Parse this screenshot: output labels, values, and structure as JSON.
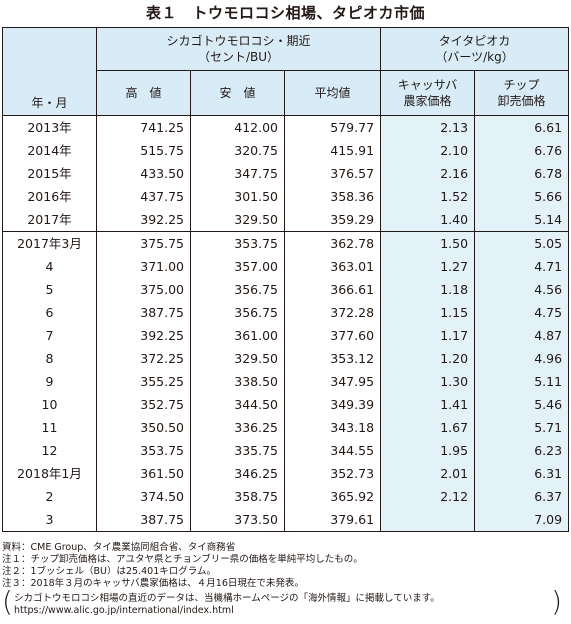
{
  "title": "表１　トウモロコシ相場、タピオカ市価",
  "header": {
    "year_month": "年・月",
    "corn_group": "シカゴトウモロコシ・期近",
    "corn_unit": "（セント/BU）",
    "tapioca_group": "タイタピオカ",
    "tapioca_unit": "（バーツ/kg）",
    "high": "高　値",
    "low": "安　値",
    "avg": "平均値",
    "cassava_line1": "キャッサバ",
    "cassava_line2": "農家価格",
    "chip_line1": "チップ",
    "chip_line2": "卸売価格"
  },
  "rows": [
    [
      "2013年",
      "741.25",
      "412.00",
      "579.77",
      "2.13",
      "6.61"
    ],
    [
      "2014年",
      "515.75",
      "320.75",
      "415.91",
      "2.10",
      "6.76"
    ],
    [
      "2015年",
      "433.50",
      "347.75",
      "376.57",
      "2.16",
      "6.78"
    ],
    [
      "2016年",
      "437.75",
      "301.50",
      "358.36",
      "1.52",
      "5.66"
    ],
    [
      "2017年",
      "392.25",
      "329.50",
      "359.29",
      "1.40",
      "5.14"
    ],
    [
      "2017年3月",
      "375.75",
      "353.75",
      "362.78",
      "1.50",
      "5.05"
    ],
    [
      "4",
      "371.00",
      "357.00",
      "363.01",
      "1.27",
      "4.71"
    ],
    [
      "5",
      "375.00",
      "356.75",
      "366.61",
      "1.18",
      "4.56"
    ],
    [
      "6",
      "387.75",
      "356.75",
      "372.28",
      "1.15",
      "4.75"
    ],
    [
      "7",
      "392.25",
      "361.00",
      "377.60",
      "1.17",
      "4.87"
    ],
    [
      "8",
      "372.25",
      "329.50",
      "353.12",
      "1.20",
      "4.96"
    ],
    [
      "9",
      "355.25",
      "338.50",
      "347.95",
      "1.30",
      "5.11"
    ],
    [
      "10",
      "352.75",
      "344.50",
      "349.39",
      "1.41",
      "5.46"
    ],
    [
      "11",
      "350.50",
      "336.25",
      "343.18",
      "1.67",
      "5.71"
    ],
    [
      "12",
      "353.75",
      "335.75",
      "344.55",
      "1.95",
      "6.23"
    ],
    [
      "2018年1月",
      "361.50",
      "346.25",
      "352.73",
      "2.01",
      "6.31"
    ],
    [
      "2",
      "374.50",
      "358.75",
      "365.92",
      "2.12",
      "6.37"
    ],
    [
      "3",
      "387.75",
      "373.50",
      "379.61",
      "",
      "7.09"
    ]
  ],
  "notes": [
    "資料：CME Group、タイ農業協同組合省、タイ商務省",
    "注１：チップ卸売価格は、アユタヤ県とチョンブリー県の価格を単純平均したもの。",
    "注２：1ブッシェル（BU）は25.401キログラム。",
    "注３：2018年３月のキャッサバ農家価格は、４月16日現在で未発表。"
  ],
  "footer_line1": "シカゴトウモロコシ相場の直近のデータは、当機構ホームページの「海外情報」に掲載しています。",
  "footer_line2": "https://www.alic.go.jp/international/index.html",
  "colors": {
    "header_bg": "#d7ecf6",
    "tapioca_bg": "#e3f1f9",
    "text": "#231815"
  }
}
